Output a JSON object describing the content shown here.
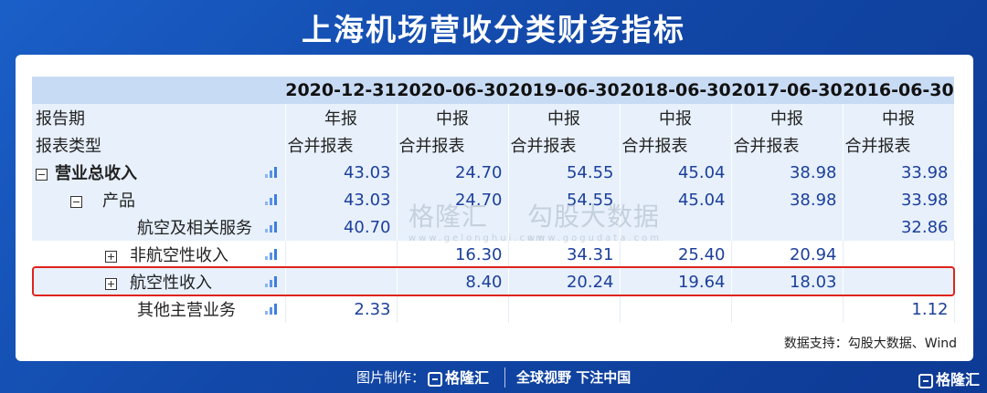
{
  "title": "上海机场营收分类财务指标",
  "columns": [
    "2020-12-31",
    "2020-06-30",
    "2019-06-30",
    "2018-06-30",
    "2017-06-30",
    "2016-06-30"
  ],
  "report_period": {
    "label": "报告期",
    "values": [
      "年报",
      "中报",
      "中报",
      "中报",
      "中报",
      "中报"
    ]
  },
  "report_type": {
    "label": "报表类型",
    "values": [
      "合并报表",
      "合并报表",
      "合并报表",
      "合并报表",
      "合并报表",
      "合并报表"
    ]
  },
  "rows": [
    {
      "label": "营业总收入",
      "values": [
        "43.03",
        "24.70",
        "54.55",
        "45.04",
        "38.98",
        "33.98"
      ]
    },
    {
      "label": "产品",
      "values": [
        "43.03",
        "24.70",
        "54.55",
        "45.04",
        "38.98",
        "33.98"
      ]
    },
    {
      "label": "航空及相关服务",
      "values": [
        "40.70",
        "",
        "",
        "",
        "",
        "32.86"
      ]
    },
    {
      "label": "非航空性收入",
      "values": [
        "",
        "16.30",
        "34.31",
        "25.40",
        "20.94",
        ""
      ]
    },
    {
      "label": "航空性收入",
      "values": [
        "",
        "8.40",
        "20.24",
        "19.64",
        "18.03",
        ""
      ]
    },
    {
      "label": "其他主营业务",
      "values": [
        "2.33",
        "",
        "",
        "",
        "",
        "1.12"
      ]
    }
  ],
  "watermark": {
    "brand": "格隆汇",
    "brand_url": "www.gelonghui.com",
    "partner": "勾股大数据",
    "partner_url": "www.gogudata.com"
  },
  "source": "数据支持：勾股大数据、Wind",
  "footer": {
    "made_by": "图片制作：",
    "logo": "格隆汇",
    "slogan": "全球视野 下注中国",
    "corner_logo": "格隆汇"
  },
  "colors": {
    "background": "#1450b5",
    "header_row": "#c8dbf4",
    "shaded_row": "#e7f0fb",
    "value_text": "#1c3f9b",
    "highlight": "#e0231c"
  }
}
